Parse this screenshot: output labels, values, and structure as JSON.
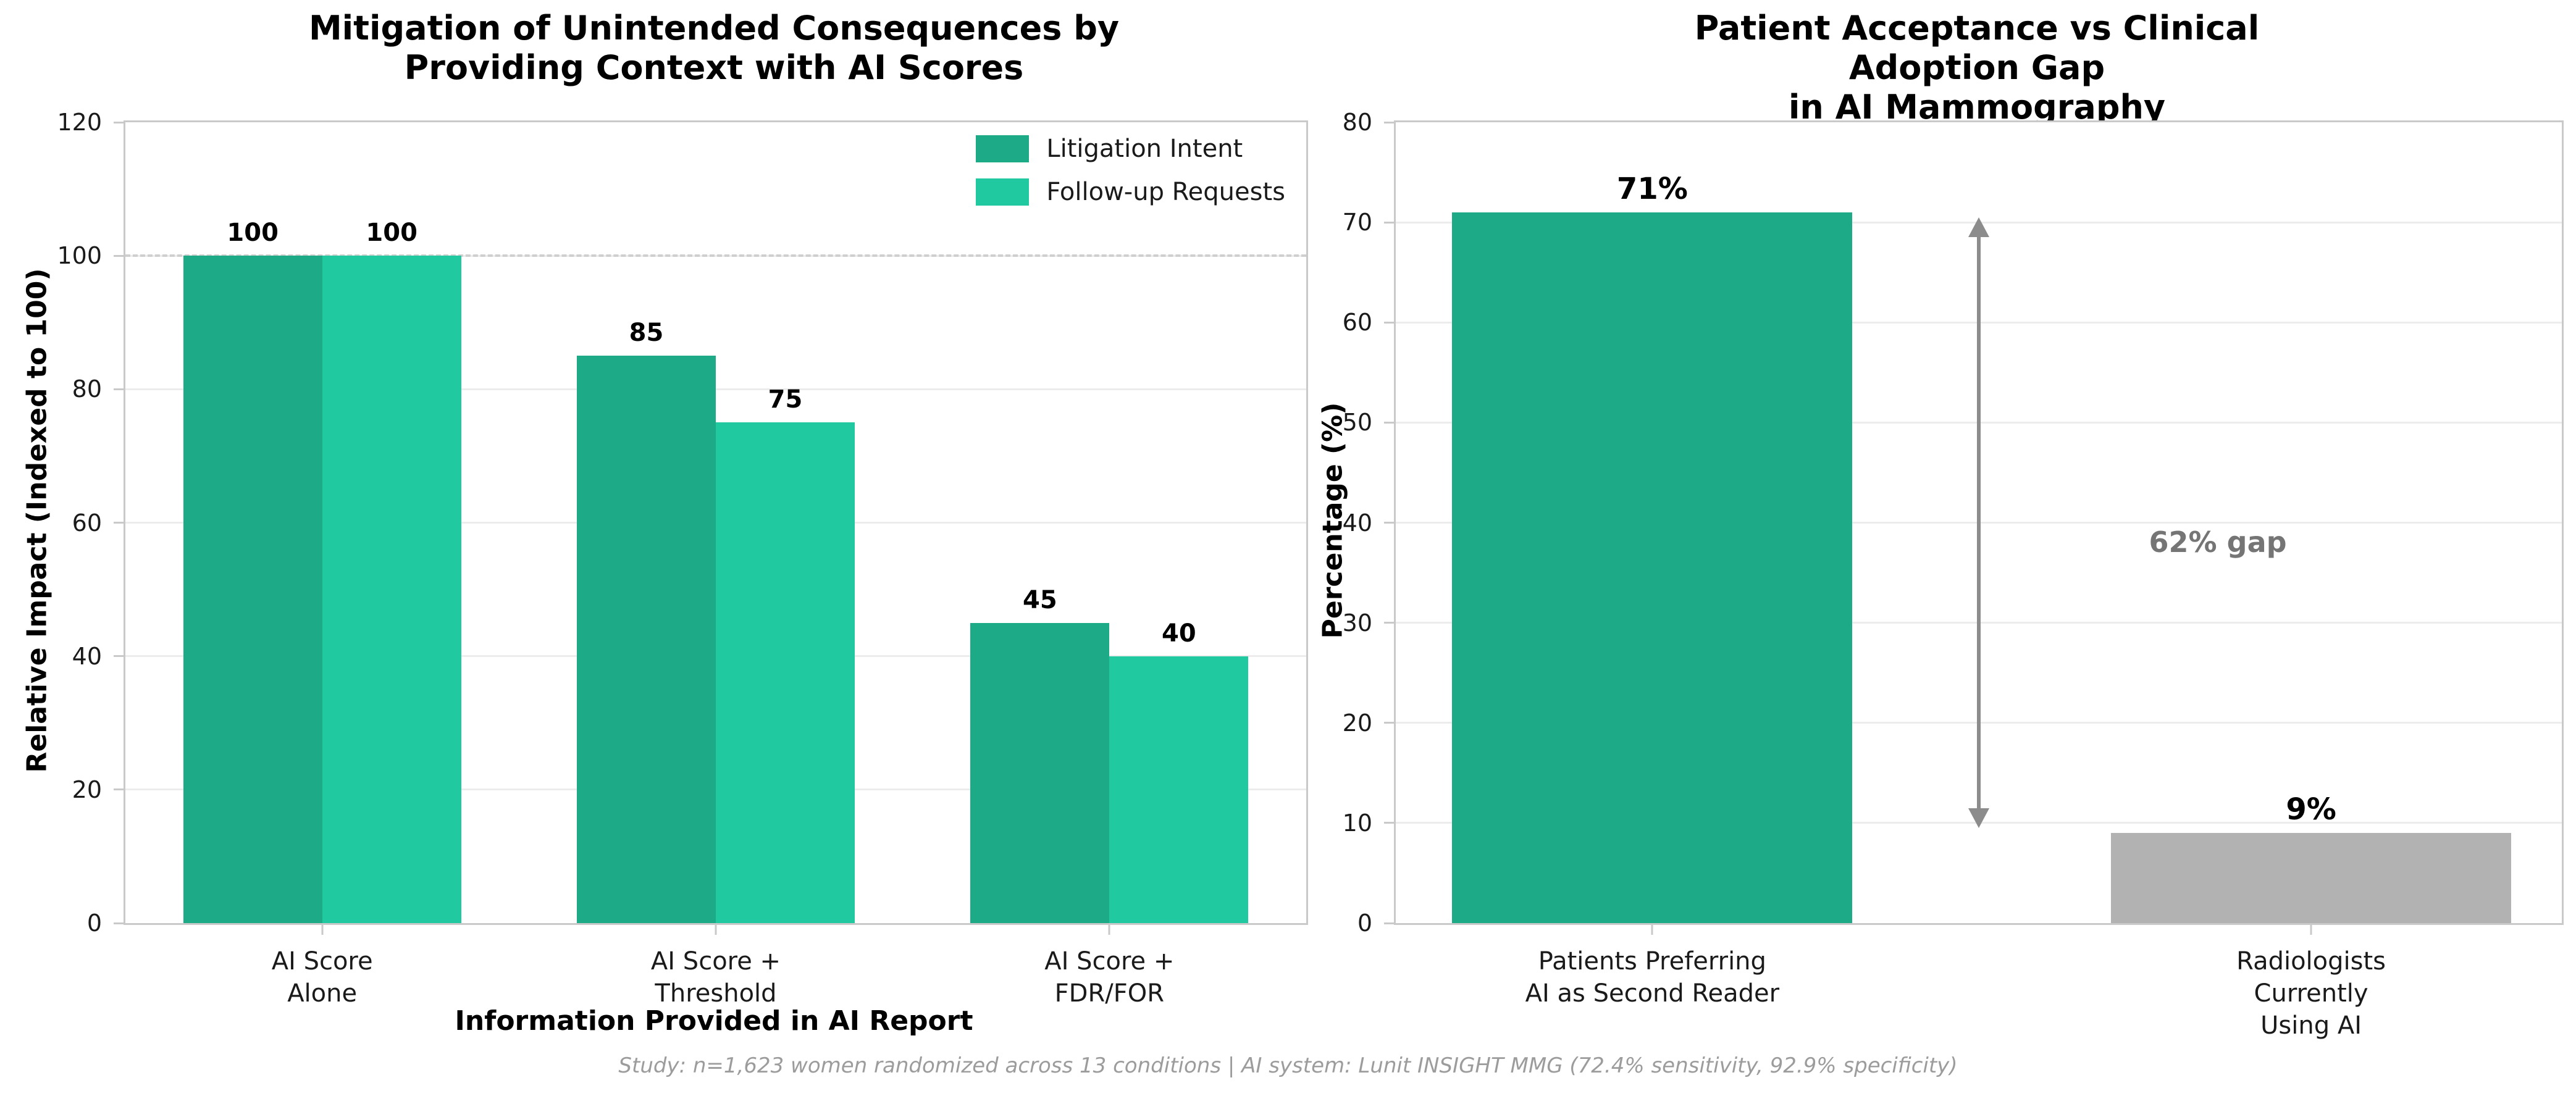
{
  "figure": {
    "background": "#ffffff",
    "footer": "Study: n=1,623 women randomized across 13 conditions | AI system: Lunit INSIGHT MMG (72.4% sensitivity, 92.9% specificity)"
  },
  "chart_data": [
    {
      "type": "bar",
      "title": "Mitigation of Unintended Consequences by\nProviding Context with AI Scores",
      "xlabel": "Information Provided in AI Report",
      "ylabel": "Relative Impact (Indexed to 100)",
      "categories": [
        "AI Score\nAlone",
        "AI Score +\nThreshold",
        "AI Score +\nFDR/FOR"
      ],
      "series": [
        {
          "name": "Litigation Intent",
          "color": "#1dab87",
          "values": [
            100,
            85,
            45
          ]
        },
        {
          "name": "Follow-up Requests",
          "color": "#20c9a0",
          "values": [
            100,
            75,
            40
          ]
        }
      ],
      "ylim": [
        0,
        120
      ],
      "yticks": [
        0,
        20,
        40,
        60,
        80,
        100,
        120
      ],
      "grid": true,
      "legend_position": "upper right",
      "reference_line": {
        "y": 100,
        "style": "dashed",
        "color": "#cfcfcf"
      }
    },
    {
      "type": "bar",
      "title": "Patient Acceptance vs Clinical Adoption Gap\nin AI Mammography",
      "xlabel": "",
      "ylabel": "Percentage (%)",
      "categories": [
        "Patients Preferring\nAI as Second Reader",
        "Radiologists Currently\nUsing AI"
      ],
      "values": [
        71,
        9
      ],
      "bar_labels": [
        "71%",
        "9%"
      ],
      "bar_colors": [
        "#1dab87",
        "#b2b2b2"
      ],
      "ylim": [
        0,
        80
      ],
      "yticks": [
        0,
        10,
        20,
        30,
        40,
        50,
        60,
        70,
        80
      ],
      "grid": true,
      "annotation": {
        "text": "62% gap",
        "color": "#757575",
        "arrow_color": "#8c8c8c",
        "arrow_from": 71,
        "arrow_to": 9
      }
    }
  ]
}
